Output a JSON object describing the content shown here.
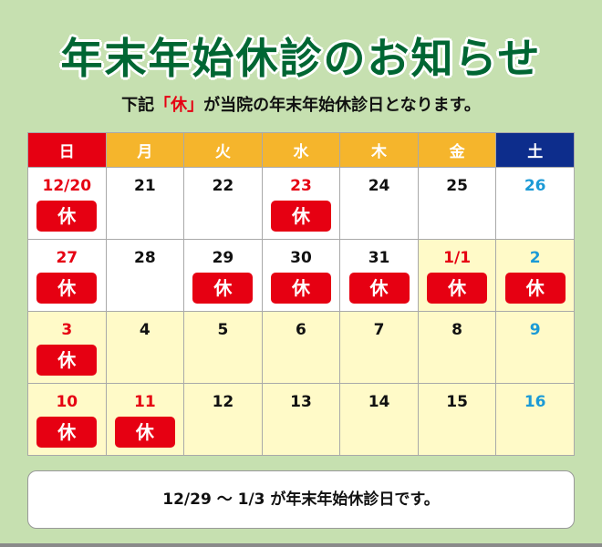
{
  "title": "年末年始休診のお知らせ",
  "subtitle": {
    "before": "下記",
    "highlight": "「休」",
    "after": "が当院の年末年始休診日となります。"
  },
  "colors": {
    "background": "#c6e0b0",
    "title": "#006633",
    "closed": "#e60012",
    "weekday_header": "#f5b52c",
    "saturday_header": "#0d2d8c",
    "saturday_number": "#1b9ad6",
    "holiday_period_cell": "#fffac8"
  },
  "weekdays": [
    "日",
    "月",
    "火",
    "水",
    "木",
    "金",
    "土"
  ],
  "closed_label": "休",
  "weeks": [
    [
      {
        "d": "12/20",
        "closed": true
      },
      {
        "d": "21"
      },
      {
        "d": "22"
      },
      {
        "d": "23",
        "closed": true,
        "red": true
      },
      {
        "d": "24"
      },
      {
        "d": "25"
      },
      {
        "d": "26"
      }
    ],
    [
      {
        "d": "27",
        "closed": true
      },
      {
        "d": "28"
      },
      {
        "d": "29",
        "closed": true
      },
      {
        "d": "30",
        "closed": true
      },
      {
        "d": "31",
        "closed": true
      },
      {
        "d": "1/1",
        "closed": true,
        "red": true,
        "hl": true
      },
      {
        "d": "2",
        "closed": true,
        "hl": true
      }
    ],
    [
      {
        "d": "3",
        "closed": true,
        "hl": true
      },
      {
        "d": "4",
        "hl": true
      },
      {
        "d": "5",
        "hl": true
      },
      {
        "d": "6",
        "hl": true
      },
      {
        "d": "7",
        "hl": true
      },
      {
        "d": "8",
        "hl": true
      },
      {
        "d": "9",
        "hl": true
      }
    ],
    [
      {
        "d": "10",
        "closed": true,
        "hl": true
      },
      {
        "d": "11",
        "closed": true,
        "red": true,
        "hl": true
      },
      {
        "d": "12",
        "hl": true
      },
      {
        "d": "13",
        "hl": true
      },
      {
        "d": "14",
        "hl": true
      },
      {
        "d": "15",
        "hl": true
      },
      {
        "d": "16",
        "hl": true
      }
    ]
  ],
  "note": "12/29 ～ 1/3 が年末年始休診日です。"
}
